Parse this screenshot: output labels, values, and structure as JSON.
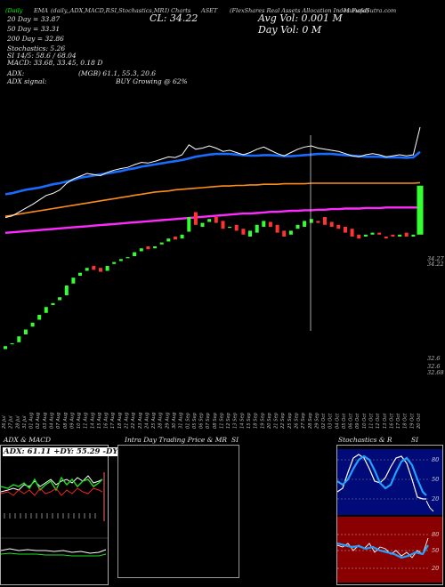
{
  "header": {
    "source": "MunafaSutra.com",
    "line1_left": "(Daily",
    "line1_ema": "EMA",
    "line1_mid": "(daily,,ADX,MACD,R",
    "line1_rsi": "SI,Stochastics,MR",
    "line1_charts": "I) Charts",
    "ticker": "ASET",
    "company": "(FlexShares Real Assets Allocation Index Fund)",
    "cl_label": "CL: 34.22",
    "avg_vol": "Avg Vol: 0.001 M",
    "day_vol": "Day Vol: 0   M",
    "dma20": "20   Day = 33.87",
    "dma50": "50   Day = 33.31",
    "dma200": "200  Day = 32.86",
    "stoch": "Stochastics: 5.26",
    "si": "SI 14/5: 58.6 / 68.04",
    "macd": "MACD: 33.68,  33.45,  0.18  D",
    "adx": "ADX:",
    "adx_vals": "(MGB) 61.1,  55.3,  20.6",
    "adx_signal": "ADX  signal:",
    "buy_text": "BUY Growing @ 62%",
    "price_right_1": "34.27",
    "price_right_2": "34.22",
    "price_low_1": "32.6",
    "price_low_2": "32.6",
    "price_low_3": "32.68"
  },
  "panels": {
    "adx_title": "ADX  & MACD",
    "adx_box": "ADX: 61.11 +DY: 55.29 -DY: 20.59",
    "intraday_title": "Intra  Day Trading Price  & MR",
    "intraday_si": "SI",
    "stoch_title": "Stochastics  & R",
    "stoch_si": "SI",
    "stoch_ticks": [
      "80",
      "50",
      "20"
    ],
    "rsi_ticks": [
      "80",
      "50",
      "20"
    ]
  },
  "chart_data": {
    "type": "line",
    "title": "ASET (FlexShares Real Assets Allocation Index Fund) Daily Charts",
    "dates": [
      "26 Jul",
      "27 Jul",
      "28 Jul",
      "31 Jul",
      "01 Aug",
      "02 Aug",
      "03 Aug",
      "04 Aug",
      "07 Aug",
      "08 Aug",
      "09 Aug",
      "10 Aug",
      "11 Aug",
      "14 Aug",
      "15 Aug",
      "16 Aug",
      "17 Aug",
      "18 Aug",
      "21 Aug",
      "22 Aug",
      "23 Aug",
      "24 Aug",
      "25 Aug",
      "28 Aug",
      "29 Aug",
      "30 Aug",
      "31 Aug",
      "01 Sep",
      "05 Sep",
      "06 Sep",
      "07 Sep",
      "08 Sep",
      "11 Sep",
      "12 Sep",
      "13 Sep",
      "14 Sep",
      "15 Sep",
      "18 Sep",
      "19 Sep",
      "20 Sep",
      "21 Sep",
      "22 Sep",
      "25 Sep",
      "26 Sep",
      "27 Sep",
      "28 Sep",
      "29 Sep",
      "02 Oct",
      "03 Oct",
      "04 Oct",
      "05 Oct",
      "06 Oct",
      "09 Oct",
      "10 Oct",
      "11 Oct",
      "12 Oct",
      "13 Oct",
      "16 Oct",
      "17 Oct",
      "18 Oct",
      "19 Oct",
      "20 Oct"
    ],
    "candles": {
      "open": [
        32.55,
        32.6,
        32.62,
        32.7,
        32.78,
        32.85,
        32.92,
        33.0,
        33.05,
        33.1,
        33.22,
        33.3,
        33.35,
        33.4,
        33.38,
        33.35,
        33.42,
        33.45,
        33.48,
        33.5,
        33.55,
        33.6,
        33.58,
        33.62,
        33.65,
        33.7,
        33.68,
        33.75,
        33.95,
        33.8,
        33.85,
        33.9,
        33.86,
        33.8,
        33.82,
        33.78,
        33.7,
        33.74,
        33.8,
        33.85,
        33.82,
        33.76,
        33.72,
        33.78,
        33.8,
        33.84,
        33.86,
        33.9,
        33.85,
        33.82,
        33.8,
        33.78,
        33.72,
        33.7,
        33.72,
        33.74,
        33.7,
        33.72,
        33.7,
        33.74,
        33.7,
        33.72
      ],
      "close": [
        32.58,
        32.61,
        32.68,
        32.75,
        32.82,
        32.9,
        32.98,
        33.02,
        33.08,
        33.2,
        33.28,
        33.33,
        33.38,
        33.36,
        33.34,
        33.4,
        33.44,
        33.47,
        33.49,
        33.54,
        33.58,
        33.57,
        33.6,
        33.64,
        33.68,
        33.67,
        33.72,
        33.9,
        33.82,
        33.84,
        33.88,
        33.84,
        33.78,
        33.8,
        33.76,
        33.72,
        33.76,
        33.82,
        33.86,
        33.8,
        33.74,
        33.7,
        33.76,
        33.82,
        33.86,
        33.88,
        33.84,
        33.82,
        33.8,
        33.78,
        33.74,
        33.7,
        33.68,
        33.72,
        33.74,
        33.72,
        33.68,
        33.7,
        33.72,
        33.7,
        33.72,
        34.22
      ]
    },
    "ema20": [
      33.1,
      33.12,
      33.15,
      33.18,
      33.2,
      33.22,
      33.25,
      33.28,
      33.3,
      33.33,
      33.36,
      33.4,
      33.42,
      33.44,
      33.46,
      33.48,
      33.5,
      33.52,
      33.55,
      33.57,
      33.6,
      33.62,
      33.64,
      33.66,
      33.68,
      33.7,
      33.72,
      33.75,
      33.78,
      33.8,
      33.82,
      33.83,
      33.83,
      33.83,
      33.82,
      33.81,
      33.8,
      33.8,
      33.81,
      33.81,
      33.8,
      33.79,
      33.79,
      33.8,
      33.81,
      33.82,
      33.83,
      33.83,
      33.83,
      33.82,
      33.81,
      33.8,
      33.79,
      33.78,
      33.78,
      33.78,
      33.77,
      33.77,
      33.77,
      33.76,
      33.77,
      33.87
    ],
    "ema50": [
      32.7,
      32.72,
      32.74,
      32.76,
      32.78,
      32.8,
      32.82,
      32.84,
      32.86,
      32.88,
      32.9,
      32.92,
      32.94,
      32.96,
      32.98,
      33.0,
      33.02,
      33.04,
      33.06,
      33.08,
      33.1,
      33.12,
      33.14,
      33.15,
      33.16,
      33.18,
      33.19,
      33.2,
      33.21,
      33.22,
      33.23,
      33.24,
      33.25,
      33.25,
      33.26,
      33.26,
      33.27,
      33.27,
      33.28,
      33.28,
      33.28,
      33.29,
      33.29,
      33.29,
      33.29,
      33.3,
      33.3,
      33.3,
      33.3,
      33.3,
      33.3,
      33.3,
      33.3,
      33.3,
      33.3,
      33.3,
      33.3,
      33.3,
      33.3,
      33.3,
      33.3,
      33.31
    ],
    "ema200": [
      32.4,
      32.41,
      32.42,
      32.43,
      32.44,
      32.45,
      32.46,
      32.47,
      32.48,
      32.49,
      32.5,
      32.51,
      32.52,
      32.53,
      32.54,
      32.55,
      32.56,
      32.57,
      32.58,
      32.59,
      32.6,
      32.61,
      32.62,
      32.63,
      32.64,
      32.65,
      32.66,
      32.67,
      32.68,
      32.69,
      32.7,
      32.71,
      32.72,
      32.73,
      32.74,
      32.75,
      32.75,
      32.76,
      32.77,
      32.78,
      32.78,
      32.79,
      32.8,
      32.8,
      32.81,
      32.81,
      32.82,
      32.82,
      32.83,
      32.83,
      32.84,
      32.84,
      32.84,
      32.85,
      32.85,
      32.85,
      32.86,
      32.86,
      32.86,
      32.86,
      32.86,
      32.86
    ]
  },
  "adx_chart": {
    "adx": 61.11,
    "plus_di": 55.29,
    "minus_di": 20.59
  },
  "stoch_chart": {
    "stochastics": 5.26,
    "si_14": 58.6,
    "si_5": 68.04
  },
  "colors": {
    "ema20": "#1a6cff",
    "ema50": "#ff8c1a",
    "ema200": "#ff2aff",
    "up": "#33ff33",
    "down": "#ff3333",
    "stoch_bg": "#000a78",
    "rsi_bg": "#8a0000"
  }
}
